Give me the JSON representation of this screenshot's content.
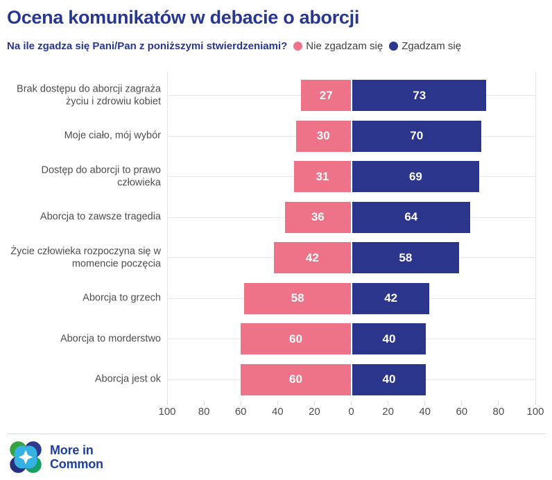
{
  "title": "Ocena komunikatów w debacie o aborcji",
  "subtitle": {
    "question": "Na ile zgadza się Pani/Pan z poniższymi stwierdzeniami?"
  },
  "legend": [
    {
      "label": "Nie zgadzam się",
      "color": "#EE7389"
    },
    {
      "label": "Zgadzam się",
      "color": "#2B358C"
    }
  ],
  "chart_data": {
    "type": "bar",
    "orientation": "horizontal-diverging",
    "categories": [
      "Brak dostępu do aborcji zagraża życiu i zdrowiu kobiet",
      "Moje ciało, mój wybór",
      "Dostęp do aborcji to prawo człowieka",
      "Aborcja to zawsze tragedia",
      "Życie człowieka rozpoczyna się w momencie poczęcia",
      "Aborcja to grzech",
      "Aborcja to morderstwo",
      "Aborcja jest ok"
    ],
    "series": [
      {
        "name": "Nie zgadzam się",
        "side": "left",
        "color": "#EE7389",
        "values": [
          27,
          30,
          31,
          36,
          42,
          58,
          60,
          60
        ]
      },
      {
        "name": "Zgadzam się",
        "side": "right",
        "color": "#2B358C",
        "values": [
          73,
          70,
          69,
          64,
          58,
          42,
          40,
          40
        ]
      }
    ],
    "axis_tick_labels": [
      "100",
      "80",
      "60",
      "40",
      "20",
      "0",
      "20",
      "40",
      "60",
      "80",
      "100"
    ],
    "xlim": [
      -100,
      100
    ],
    "grid": "horizontal-row-lines-and-edge-verticals",
    "legend_position": "top"
  },
  "footer": {
    "logo_line1": "More in",
    "logo_line2": "Common",
    "logo_colors": {
      "green_tl": "#35A33F",
      "navy_tr": "#2B3A8F",
      "navy_bl": "#27307E",
      "green_br": "#189F62",
      "light_blue": "#35B2E3",
      "star": "#FFFFFF"
    }
  },
  "colors": {
    "title_navy": "#283792",
    "label_gray": "#4D4D4D",
    "grid_gray": "#E9E9E9"
  }
}
